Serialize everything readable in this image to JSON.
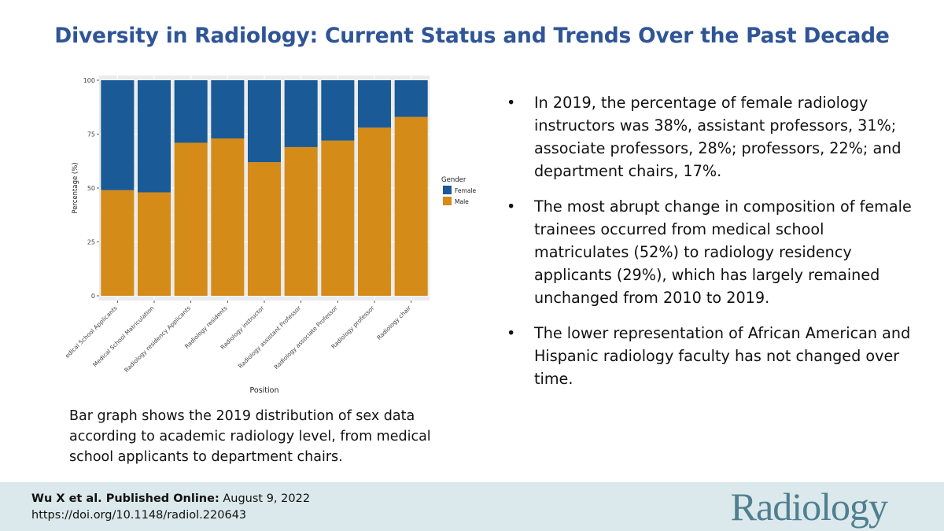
{
  "title": "Diversity in Radiology: Current Status and Trends Over the Past Decade",
  "caption": "Bar graph shows the 2019 distribution of sex data according to academic radiology level, from medical school applicants to department chairs.",
  "bullets": [
    "In 2019, the percentage of female radiology instructors was 38%, assistant professors, 31%; associate professors, 28%; professors, 22%; and department chairs, 17%.",
    "The most abrupt change in composition of female trainees occurred from medical school matriculates (52%) to radiology residency applicants (29%), which has largely remained unchanged from 2010 to 2019.",
    "The lower representation of African American and Hispanic radiology faculty has not changed over time."
  ],
  "bullet_marker": "•",
  "footer": {
    "citation_bold": "Wu X et al. Published Online:",
    "citation_date": " August 9, 2022",
    "doi": "https://doi.org/10.1148/radiol.220643",
    "brand": "Radiology"
  },
  "colors": {
    "title": "#2f5597",
    "female": "#1a5a96",
    "male": "#d48b18",
    "panel": "#ebebeb",
    "footer_bg": "#dbe8ec",
    "brand": "#4f7f90"
  },
  "chart_data": {
    "type": "bar",
    "stacked": true,
    "title": "",
    "xlabel": "Position",
    "ylabel": "Percentage (%)",
    "ylim": [
      0,
      100
    ],
    "yticks": [
      0,
      25,
      50,
      75,
      100
    ],
    "categories": [
      "Medical School Applicants",
      "Medical School Matriculation",
      "Radiology residency Applicants",
      "Radiology residents",
      "Radiology instructor",
      "Radiology assistant Professor",
      "Radiology associate Professor",
      "Radiology professor",
      "Radiology chair"
    ],
    "category_labels_shown": [
      "edical School Applicants",
      "Medical School Matriculation",
      "Radiology residency Applicants",
      "Radiology residents",
      "Radiology instructor",
      "Radiology assistant Professor",
      "Radiology associate Professor",
      "Radiology professor",
      "Radiology chair"
    ],
    "legend_title": "Gender",
    "legend_position": "right",
    "series": [
      {
        "name": "Male",
        "values": [
          49,
          48,
          71,
          73,
          62,
          69,
          72,
          78,
          83
        ]
      },
      {
        "name": "Female",
        "values": [
          51,
          52,
          29,
          27,
          38,
          31,
          28,
          22,
          17
        ]
      }
    ]
  }
}
